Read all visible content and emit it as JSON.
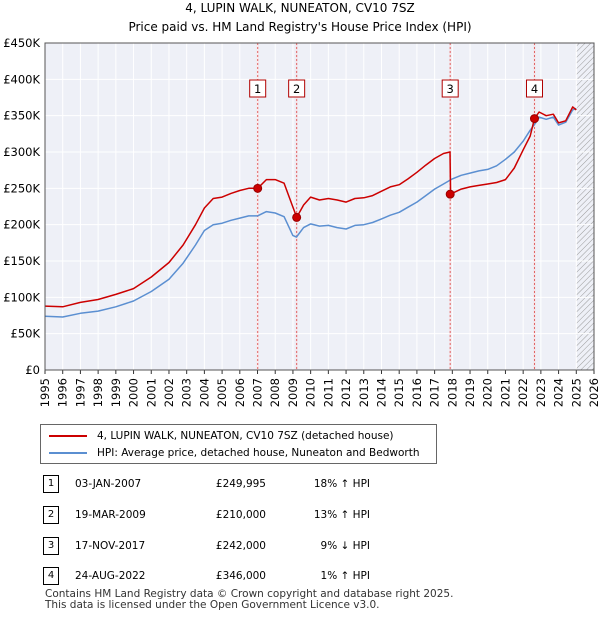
{
  "chart_data": {
    "type": "line",
    "title": "4, LUPIN WALK, NUNEATON, CV10 7SZ",
    "subtitle": "Price paid vs. HM Land Registry's House Price Index (HPI)",
    "y_tick_labels": [
      "£0",
      "£50K",
      "£100K",
      "£150K",
      "£200K",
      "£250K",
      "£300K",
      "£350K",
      "£400K",
      "£450K"
    ],
    "y_tick_values": [
      0,
      50000,
      100000,
      150000,
      200000,
      250000,
      300000,
      350000,
      400000,
      450000
    ],
    "x_tick_labels": [
      "1995",
      "1996",
      "1997",
      "1998",
      "1999",
      "2000",
      "2001",
      "2002",
      "2003",
      "2004",
      "2005",
      "2006",
      "2007",
      "2008",
      "2009",
      "2010",
      "2011",
      "2012",
      "2013",
      "2014",
      "2015",
      "2016",
      "2017",
      "2018",
      "2019",
      "2020",
      "2021",
      "2022",
      "2023",
      "2024",
      "2025",
      "2026"
    ],
    "xlim": [
      1995,
      2026
    ],
    "ylim": [
      0,
      450000
    ],
    "grid": true,
    "future_start": 2025.0,
    "series": [
      {
        "name": "4, LUPIN WALK, NUNEATON, CV10 7SZ (detached house)",
        "color": "#cc0000",
        "x": [
          1995.0,
          1996.0,
          1997.0,
          1998.0,
          1999.0,
          2000.0,
          2001.0,
          2002.0,
          2002.8,
          2003.5,
          2004.0,
          2004.5,
          2005.0,
          2005.5,
          2006.0,
          2006.5,
          2007.01,
          2007.5,
          2008.0,
          2008.5,
          2009.21,
          2009.6,
          2010.0,
          2010.5,
          2011.0,
          2011.5,
          2012.0,
          2012.5,
          2013.0,
          2013.5,
          2014.0,
          2014.5,
          2015.0,
          2015.5,
          2016.0,
          2016.5,
          2017.0,
          2017.5,
          2017.87,
          2017.9,
          2018.5,
          2019.0,
          2019.5,
          2020.0,
          2020.5,
          2021.0,
          2021.5,
          2022.0,
          2022.4,
          2022.64,
          2022.9,
          2023.3,
          2023.7,
          2024.0,
          2024.4,
          2024.8,
          2025.0
        ],
        "values": [
          88000,
          87000,
          93000,
          97000,
          104000,
          112000,
          128000,
          148000,
          172000,
          200000,
          223000,
          236000,
          238000,
          243000,
          247000,
          250000,
          249995,
          262000,
          262000,
          257000,
          210000,
          227000,
          238000,
          234000,
          236000,
          234000,
          231000,
          236000,
          237000,
          240000,
          246000,
          252000,
          255000,
          263000,
          272000,
          282000,
          291000,
          298000,
          300000,
          242000,
          249000,
          252000,
          254000,
          256000,
          258000,
          262000,
          278000,
          303000,
          322000,
          346000,
          355000,
          350000,
          352000,
          340000,
          343000,
          362000,
          358000
        ]
      },
      {
        "name": "HPI: Average price, detached house, Nuneaton and Bedworth",
        "color": "#5b8fd1",
        "x": [
          1995.0,
          1996.0,
          1997.0,
          1998.0,
          1999.0,
          2000.0,
          2001.0,
          2002.0,
          2002.8,
          2003.5,
          2004.0,
          2004.5,
          2005.0,
          2005.5,
          2006.0,
          2006.5,
          2007.0,
          2007.5,
          2008.0,
          2008.5,
          2009.0,
          2009.2,
          2009.6,
          2010.0,
          2010.5,
          2011.0,
          2011.5,
          2012.0,
          2012.5,
          2013.0,
          2013.5,
          2014.0,
          2014.5,
          2015.0,
          2015.5,
          2016.0,
          2016.5,
          2017.0,
          2017.5,
          2018.0,
          2018.5,
          2019.0,
          2019.5,
          2020.0,
          2020.5,
          2021.0,
          2021.5,
          2022.0,
          2022.4,
          2022.7,
          2022.9,
          2023.3,
          2023.7,
          2024.0,
          2024.4,
          2024.8,
          2025.0
        ],
        "values": [
          74000,
          73000,
          78000,
          81000,
          87000,
          95000,
          108000,
          125000,
          147000,
          172000,
          192000,
          200000,
          202000,
          206000,
          209000,
          212000,
          212000,
          218000,
          216000,
          211000,
          185000,
          183000,
          196000,
          201000,
          198000,
          199000,
          196000,
          194000,
          199000,
          200000,
          203000,
          208000,
          213000,
          217000,
          224000,
          231000,
          240000,
          249000,
          256000,
          263000,
          268000,
          271000,
          274000,
          276000,
          281000,
          290000,
          300000,
          315000,
          330000,
          340000,
          348000,
          345000,
          348000,
          337000,
          341000,
          358000,
          360000
        ]
      }
    ],
    "sales": [
      {
        "num": "1",
        "x": 2007.01,
        "price": 249995
      },
      {
        "num": "2",
        "x": 2009.21,
        "price": 210000
      },
      {
        "num": "3",
        "x": 2017.88,
        "price": 242000
      },
      {
        "num": "4",
        "x": 2022.64,
        "price": 346000
      }
    ]
  },
  "legend": {
    "property_label": "4, LUPIN WALK, NUNEATON, CV10 7SZ (detached house)",
    "hpi_label": "HPI: Average price, detached house, Nuneaton and Bedworth",
    "property_color": "#cc0000",
    "hpi_color": "#5b8fd1"
  },
  "transactions": [
    {
      "num": "1",
      "date": "03-JAN-2007",
      "price": "£249,995",
      "hpi": "18% ↑ HPI"
    },
    {
      "num": "2",
      "date": "19-MAR-2009",
      "price": "£210,000",
      "hpi": "13% ↑ HPI"
    },
    {
      "num": "3",
      "date": "17-NOV-2017",
      "price": "£242,000",
      "hpi": "9% ↓ HPI"
    },
    {
      "num": "4",
      "date": "24-AUG-2022",
      "price": "£346,000",
      "hpi": "1% ↑ HPI"
    }
  ],
  "footer": {
    "line1": "Contains HM Land Registry data © Crown copyright and database right 2025.",
    "line2": "This data is licensed under the Open Government Licence v3.0."
  }
}
